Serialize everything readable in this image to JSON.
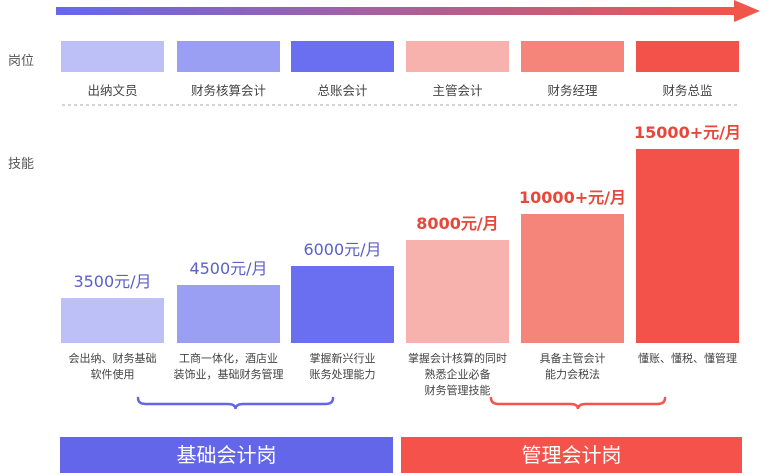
{
  "row_labels": {
    "position": "岗位",
    "skill": "技能"
  },
  "colors": {
    "arrow_start": "#6468ee",
    "arrow_end": "#f0564a",
    "blue_text": "#5a60c8",
    "red_text": "#e8473b",
    "band_blue": "#6366e8",
    "band_red": "#f4524a"
  },
  "chart_data": {
    "type": "bar",
    "title": "",
    "xlabel": "",
    "ylabel": "",
    "unit": "元/月",
    "categories": [
      "出纳文员",
      "财务核算会计",
      "总账会计",
      "主管会计",
      "财务经理",
      "财务总监"
    ],
    "values": [
      3500,
      4500,
      6000,
      8000,
      10000,
      15000
    ],
    "value_labels": [
      "3500元/月",
      "4500元/月",
      "6000元/月",
      "8000元/月",
      "10000+元/月",
      "15000+元/月"
    ],
    "bar_colors": [
      "#bcc0f7",
      "#9a9ff3",
      "#6a6ef0",
      "#f7b2ae",
      "#f5847b",
      "#f3524a"
    ],
    "skills": [
      "会出纳、财务基础\n软件使用",
      "工商一体化，酒店业\n装饰业，基础财务管理",
      "掌握新兴行业\n账务处理能力",
      "掌握会计核算的同时\n熟悉企业必备\n财务管理技能",
      "具备主管会计\n能力会税法",
      "懂账、懂税、懂管理"
    ],
    "groups": [
      {
        "label": "基础会计岗",
        "members": [
          "出纳文员",
          "财务核算会计",
          "总账会计"
        ]
      },
      {
        "label": "管理会计岗",
        "members": [
          "主管会计",
          "财务经理",
          "财务总监"
        ]
      }
    ]
  }
}
